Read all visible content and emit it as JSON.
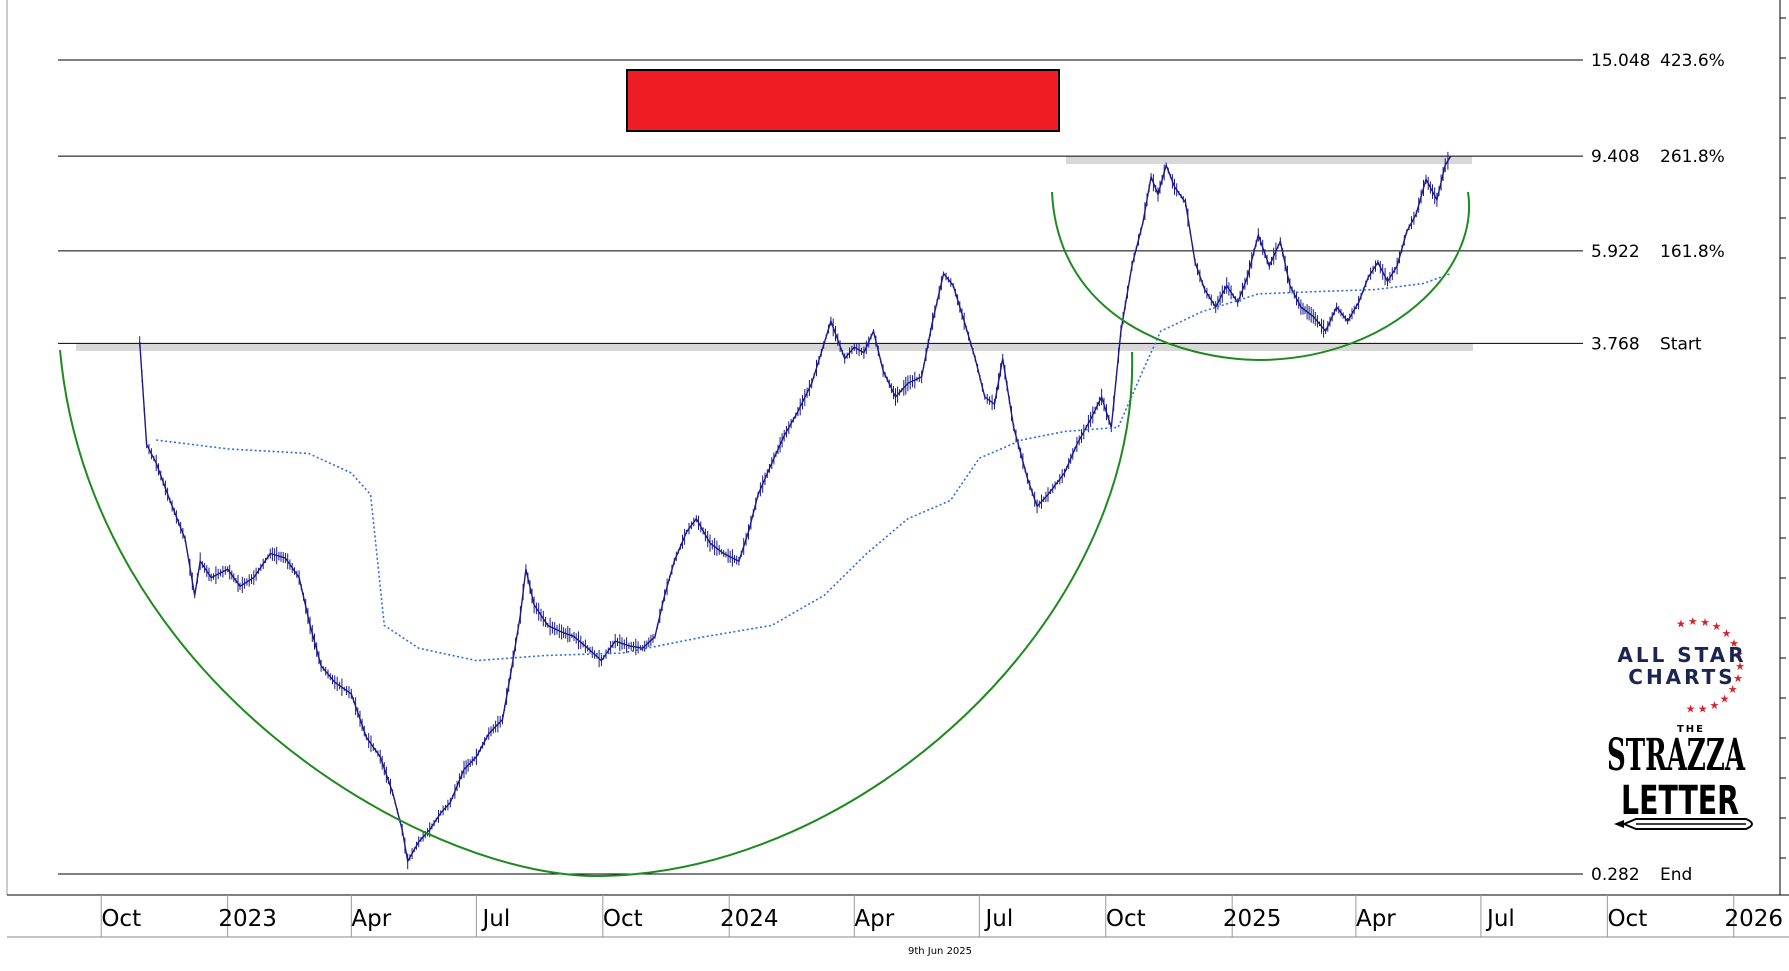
{
  "chart_data": {
    "type": "line",
    "title": "",
    "xlabel": "",
    "ylabel": "",
    "y_scale": "log",
    "x_range": [
      "2022-09-01",
      "2026-01-31"
    ],
    "y_range": [
      0.282,
      15.048
    ],
    "x_tick_labels": [
      {
        "label": "Oct",
        "date": "2022-10-01"
      },
      {
        "label": "2023",
        "date": "2023-01-01"
      },
      {
        "label": "Apr",
        "date": "2023-04-01"
      },
      {
        "label": "Jul",
        "date": "2023-07-01"
      },
      {
        "label": "Oct",
        "date": "2023-10-01"
      },
      {
        "label": "2024",
        "date": "2024-01-01"
      },
      {
        "label": "Apr",
        "date": "2024-04-01"
      },
      {
        "label": "Jul",
        "date": "2024-07-01"
      },
      {
        "label": "Oct",
        "date": "2024-10-01"
      },
      {
        "label": "2025",
        "date": "2025-01-01"
      },
      {
        "label": "Apr",
        "date": "2025-04-01"
      },
      {
        "label": "Jul",
        "date": "2025-07-01"
      },
      {
        "label": "Oct",
        "date": "2025-10-01"
      },
      {
        "label": "2026",
        "date": "2026-01-01"
      }
    ],
    "levels": [
      {
        "value": 15.048,
        "value_label": "15.048",
        "label": "423.6%"
      },
      {
        "value": 9.408,
        "value_label": "9.408",
        "label": "261.8%"
      },
      {
        "value": 5.922,
        "value_label": "5.922",
        "label": "161.8%"
      },
      {
        "value": 3.768,
        "value_label": "3.768",
        "label": "Start"
      },
      {
        "value": 0.282,
        "value_label": "0.282",
        "label": "End"
      }
    ],
    "series": [
      {
        "style": "price-bars",
        "color": "#1a1a8c",
        "points": [
          [
            "2022-10-29",
            3.8
          ],
          [
            "2022-11-03",
            2.3
          ],
          [
            "2022-11-10",
            2.1
          ],
          [
            "2022-11-20",
            1.75
          ],
          [
            "2022-12-01",
            1.45
          ],
          [
            "2022-12-08",
            1.1
          ],
          [
            "2022-12-12",
            1.3
          ],
          [
            "2022-12-20",
            1.2
          ],
          [
            "2023-01-01",
            1.25
          ],
          [
            "2023-01-10",
            1.15
          ],
          [
            "2023-01-20",
            1.2
          ],
          [
            "2023-02-01",
            1.35
          ],
          [
            "2023-02-12",
            1.32
          ],
          [
            "2023-02-22",
            1.2
          ],
          [
            "2023-03-02",
            0.95
          ],
          [
            "2023-03-10",
            0.78
          ],
          [
            "2023-03-20",
            0.72
          ],
          [
            "2023-04-01",
            0.68
          ],
          [
            "2023-04-12",
            0.55
          ],
          [
            "2023-04-22",
            0.5
          ],
          [
            "2023-05-01",
            0.42
          ],
          [
            "2023-05-08",
            0.35
          ],
          [
            "2023-05-12",
            0.3
          ],
          [
            "2023-05-20",
            0.33
          ],
          [
            "2023-05-28",
            0.35
          ],
          [
            "2023-06-05",
            0.38
          ],
          [
            "2023-06-12",
            0.4
          ],
          [
            "2023-06-22",
            0.47
          ],
          [
            "2023-07-01",
            0.5
          ],
          [
            "2023-07-10",
            0.56
          ],
          [
            "2023-07-20",
            0.6
          ],
          [
            "2023-07-26",
            0.75
          ],
          [
            "2023-08-02",
            1.0
          ],
          [
            "2023-08-06",
            1.25
          ],
          [
            "2023-08-12",
            1.05
          ],
          [
            "2023-08-22",
            0.95
          ],
          [
            "2023-09-01",
            0.92
          ],
          [
            "2023-09-10",
            0.9
          ],
          [
            "2023-09-20",
            0.85
          ],
          [
            "2023-09-30",
            0.8
          ],
          [
            "2023-10-10",
            0.88
          ],
          [
            "2023-10-20",
            0.86
          ],
          [
            "2023-10-30",
            0.85
          ],
          [
            "2023-11-08",
            0.9
          ],
          [
            "2023-11-15",
            1.1
          ],
          [
            "2023-11-22",
            1.3
          ],
          [
            "2023-12-01",
            1.5
          ],
          [
            "2023-12-08",
            1.6
          ],
          [
            "2023-12-18",
            1.42
          ],
          [
            "2023-12-28",
            1.35
          ],
          [
            "2024-01-08",
            1.3
          ],
          [
            "2024-01-15",
            1.5
          ],
          [
            "2024-01-22",
            1.8
          ],
          [
            "2024-02-01",
            2.1
          ],
          [
            "2024-02-10",
            2.4
          ],
          [
            "2024-02-20",
            2.7
          ],
          [
            "2024-03-01",
            3.1
          ],
          [
            "2024-03-08",
            3.6
          ],
          [
            "2024-03-15",
            4.2
          ],
          [
            "2024-03-25",
            3.5
          ],
          [
            "2024-04-01",
            3.7
          ],
          [
            "2024-04-08",
            3.6
          ],
          [
            "2024-04-15",
            4.0
          ],
          [
            "2024-04-22",
            3.3
          ],
          [
            "2024-05-01",
            2.9
          ],
          [
            "2024-05-10",
            3.1
          ],
          [
            "2024-05-20",
            3.2
          ],
          [
            "2024-05-28",
            4.2
          ],
          [
            "2024-06-05",
            5.3
          ],
          [
            "2024-06-12",
            5.0
          ],
          [
            "2024-06-20",
            4.2
          ],
          [
            "2024-06-28",
            3.5
          ],
          [
            "2024-07-05",
            2.9
          ],
          [
            "2024-07-12",
            2.8
          ],
          [
            "2024-07-18",
            3.5
          ],
          [
            "2024-07-26",
            2.5
          ],
          [
            "2024-08-05",
            1.95
          ],
          [
            "2024-08-12",
            1.7
          ],
          [
            "2024-08-20",
            1.8
          ],
          [
            "2024-09-01",
            2.0
          ],
          [
            "2024-09-10",
            2.3
          ],
          [
            "2024-09-20",
            2.6
          ],
          [
            "2024-09-28",
            2.9
          ],
          [
            "2024-10-05",
            2.5
          ],
          [
            "2024-10-12",
            4.0
          ],
          [
            "2024-10-20",
            5.5
          ],
          [
            "2024-10-28",
            6.8
          ],
          [
            "2024-11-03",
            8.5
          ],
          [
            "2024-11-08",
            7.8
          ],
          [
            "2024-11-14",
            9.0
          ],
          [
            "2024-11-20",
            8.1
          ],
          [
            "2024-11-28",
            7.5
          ],
          [
            "2024-12-05",
            5.6
          ],
          [
            "2024-12-12",
            4.9
          ],
          [
            "2024-12-20",
            4.5
          ],
          [
            "2024-12-28",
            5.0
          ],
          [
            "2025-01-05",
            4.6
          ],
          [
            "2025-01-12",
            5.2
          ],
          [
            "2025-01-20",
            6.4
          ],
          [
            "2025-01-28",
            5.5
          ],
          [
            "2025-02-05",
            6.2
          ],
          [
            "2025-02-12",
            5.0
          ],
          [
            "2025-02-20",
            4.5
          ],
          [
            "2025-03-01",
            4.3
          ],
          [
            "2025-03-10",
            4.0
          ],
          [
            "2025-03-18",
            4.5
          ],
          [
            "2025-03-26",
            4.2
          ],
          [
            "2025-04-03",
            4.6
          ],
          [
            "2025-04-10",
            5.2
          ],
          [
            "2025-04-17",
            5.6
          ],
          [
            "2025-04-24",
            5.1
          ],
          [
            "2025-05-01",
            5.5
          ],
          [
            "2025-05-08",
            6.5
          ],
          [
            "2025-05-15",
            7.1
          ],
          [
            "2025-05-22",
            8.4
          ],
          [
            "2025-05-30",
            7.6
          ],
          [
            "2025-06-05",
            9.0
          ],
          [
            "2025-06-09",
            9.4
          ]
        ]
      },
      {
        "style": "dotted",
        "color": "#2e6fd8",
        "points": [
          [
            "2022-11-10",
            2.35
          ],
          [
            "2023-01-01",
            2.25
          ],
          [
            "2023-03-01",
            2.2
          ],
          [
            "2023-04-01",
            2.0
          ],
          [
            "2023-04-15",
            1.8
          ],
          [
            "2023-04-25",
            0.95
          ],
          [
            "2023-05-20",
            0.85
          ],
          [
            "2023-07-01",
            0.8
          ],
          [
            "2023-08-20",
            0.82
          ],
          [
            "2023-10-15",
            0.83
          ],
          [
            "2023-12-15",
            0.9
          ],
          [
            "2024-02-01",
            0.95
          ],
          [
            "2024-03-10",
            1.1
          ],
          [
            "2024-04-10",
            1.35
          ],
          [
            "2024-05-10",
            1.6
          ],
          [
            "2024-06-10",
            1.75
          ],
          [
            "2024-07-01",
            2.15
          ],
          [
            "2024-08-01",
            2.35
          ],
          [
            "2024-09-01",
            2.45
          ],
          [
            "2024-10-10",
            2.5
          ],
          [
            "2024-10-28",
            3.3
          ],
          [
            "2024-11-10",
            4.0
          ],
          [
            "2024-12-10",
            4.4
          ],
          [
            "2025-01-20",
            4.8
          ],
          [
            "2025-03-01",
            4.85
          ],
          [
            "2025-04-15",
            4.9
          ],
          [
            "2025-05-20",
            5.05
          ],
          [
            "2025-06-09",
            5.3
          ]
        ]
      }
    ],
    "annotations": [
      {
        "type": "arc",
        "color": "#1e8a1e"
      },
      {
        "type": "arc",
        "color": "#1e8a1e"
      },
      {
        "type": "box",
        "color": "#ee1c24"
      }
    ]
  },
  "footer": {
    "date_label": "9th Jun 2025"
  },
  "logos": {
    "all_star_charts": {
      "line1": "ALL STAR",
      "line2": "CHARTS"
    },
    "strazza_letter": {
      "the": "THE",
      "line1": "STRAZZA",
      "line2": "LETTER"
    }
  }
}
